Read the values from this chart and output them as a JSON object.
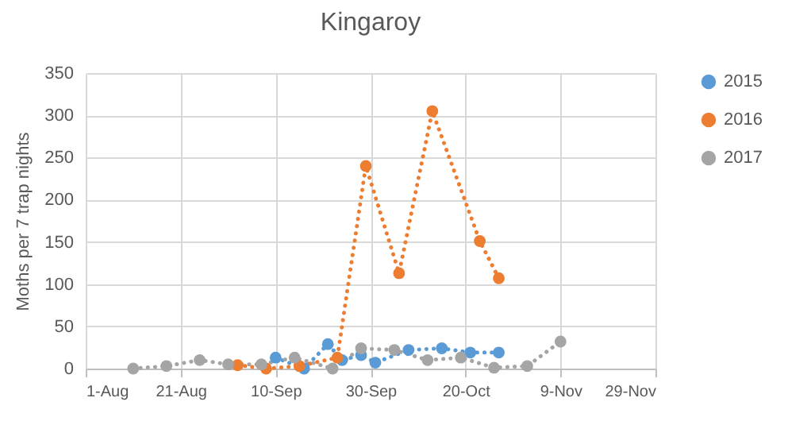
{
  "chart_data": {
    "type": "line",
    "title": "Kingaroy",
    "ylabel": "Moths per 7 trap nights",
    "xlim": [
      "--08-01",
      "--11-29"
    ],
    "xticks": [
      {
        "value": "--08-01",
        "label": "1-Aug"
      },
      {
        "value": "--08-21",
        "label": "21-Aug"
      },
      {
        "value": "--09-10",
        "label": "10-Sep"
      },
      {
        "value": "--09-30",
        "label": "30-Sep"
      },
      {
        "value": "--10-20",
        "label": "20-Oct"
      },
      {
        "value": "--11-09",
        "label": "9-Nov"
      },
      {
        "value": "--11-29",
        "label": "29-Nov"
      }
    ],
    "ylim": [
      0,
      350
    ],
    "yticks": [
      0,
      50,
      100,
      150,
      200,
      250,
      300,
      350
    ],
    "grid": true,
    "legend": "right",
    "marker": "circle",
    "line_style": "dotted",
    "series": [
      {
        "name": "2015",
        "color": "#5b9bd5",
        "x": [
          "--09-10",
          "--09-16",
          "--09-21",
          "--09-24",
          "--09-28",
          "--10-01",
          "--10-08",
          "--10-15",
          "--10-21",
          "--10-27"
        ],
        "values": [
          13,
          0,
          29,
          10,
          16,
          7,
          22,
          24,
          19,
          19
        ]
      },
      {
        "name": "2016",
        "color": "#ed7d31",
        "x": [
          "--09-02",
          "--09-08",
          "--09-15",
          "--09-23",
          "--09-29",
          "--10-06",
          "--10-13",
          "--10-23",
          "--10-27"
        ],
        "values": [
          4,
          0,
          3,
          13,
          240,
          113,
          305,
          151,
          107
        ]
      },
      {
        "name": "2017",
        "color": "#a5a5a5",
        "x": [
          "--08-11",
          "--08-18",
          "--08-25",
          "--08-31",
          "--09-07",
          "--09-14",
          "--09-22",
          "--09-28",
          "--10-05",
          "--10-12",
          "--10-19",
          "--10-26",
          "--11-02",
          "--11-09"
        ],
        "values": [
          0,
          3,
          10,
          5,
          5,
          13,
          0,
          24,
          22,
          10,
          13,
          1,
          3,
          32
        ]
      }
    ]
  }
}
